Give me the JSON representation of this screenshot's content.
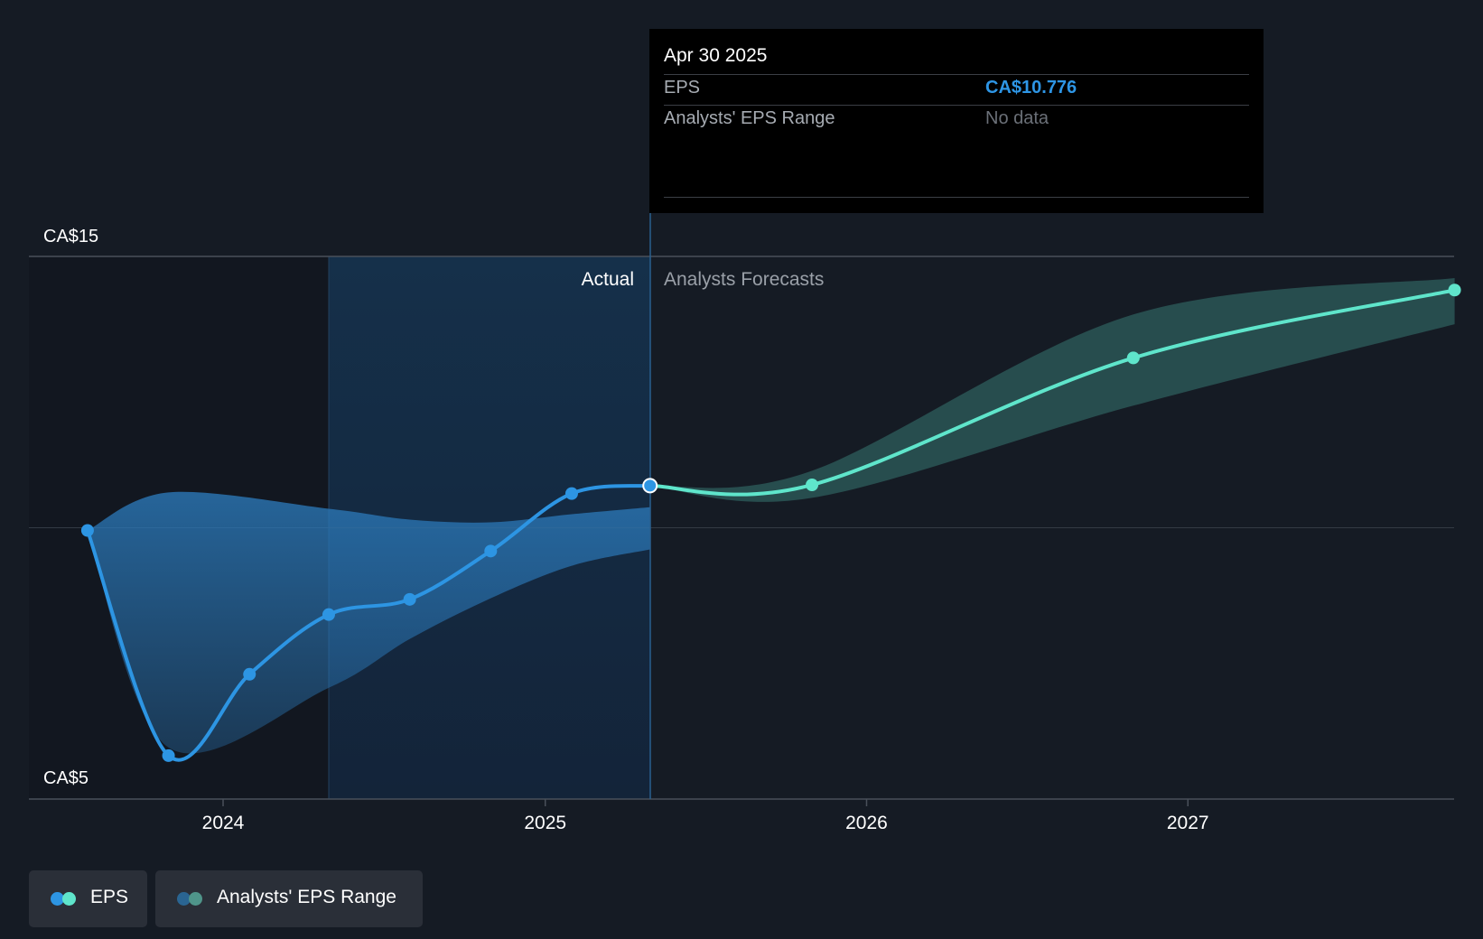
{
  "chart_data": {
    "type": "line",
    "y_axis": {
      "unit": "CA$",
      "ticks": [
        "CA$15",
        "CA$5"
      ],
      "ylim": [
        5,
        15
      ],
      "grid": true
    },
    "x_axis": {
      "ticks": [
        "2024",
        "2025",
        "2026",
        "2027"
      ]
    },
    "regions": {
      "actual_label": "Actual",
      "forecast_label": "Analysts Forecasts"
    },
    "series": [
      {
        "name": "EPS",
        "kind": "actual",
        "color": "#2d95e3",
        "points": [
          {
            "x": "2023-07-31",
            "y": 9.95
          },
          {
            "x": "2023-10-31",
            "y": 5.8
          },
          {
            "x": "2024-01-31",
            "y": 7.3
          },
          {
            "x": "2024-04-30",
            "y": 8.4
          },
          {
            "x": "2024-07-31",
            "y": 8.68
          },
          {
            "x": "2024-10-31",
            "y": 9.57
          },
          {
            "x": "2025-01-31",
            "y": 10.63
          },
          {
            "x": "2025-04-30",
            "y": 10.776
          }
        ]
      },
      {
        "name": "EPS",
        "kind": "forecast",
        "color": "#5fe5cb",
        "points": [
          {
            "x": "2025-04-30",
            "y": 10.776
          },
          {
            "x": "2025-10-31",
            "y": 10.79
          },
          {
            "x": "2026-10-31",
            "y": 13.13
          },
          {
            "x": "2027-10-31",
            "y": 14.38
          }
        ]
      },
      {
        "name": "Analysts' EPS Range",
        "kind": "band",
        "color": "#2d95e3",
        "points": [
          {
            "x": "2023-07-31",
            "low": 9.95,
            "high": 9.95
          },
          {
            "x": "2023-10-31",
            "low": 5.95,
            "high": 10.65
          },
          {
            "x": "2024-04-30",
            "low": 7.05,
            "high": 10.35
          },
          {
            "x": "2024-07-31",
            "low": 7.95,
            "high": 10.15
          },
          {
            "x": "2024-10-31",
            "low": 8.7,
            "high": 10.1
          },
          {
            "x": "2025-01-31",
            "low": 9.3,
            "high": 10.25
          },
          {
            "x": "2025-04-30",
            "low": 9.6,
            "high": 10.38
          }
        ]
      },
      {
        "name": "Analysts' EPS Range",
        "kind": "band",
        "color": "#5fe5cb",
        "points": [
          {
            "x": "2025-04-30",
            "low": 10.776,
            "high": 10.776
          },
          {
            "x": "2025-10-31",
            "low": 10.55,
            "high": 11.05
          },
          {
            "x": "2026-10-31",
            "low": 12.25,
            "high": 13.93
          },
          {
            "x": "2027-10-31",
            "low": 13.75,
            "high": 14.6
          }
        ]
      }
    ],
    "tooltip": {
      "date": "Apr 30 2025",
      "rows": [
        {
          "label": "EPS",
          "value": "CA$10.776"
        },
        {
          "label": "Analysts' EPS Range",
          "value": "No data"
        }
      ]
    },
    "legend": [
      {
        "label": "EPS",
        "colors": [
          "#2d95e3",
          "#5fe5cb"
        ]
      },
      {
        "label": "Analysts' EPS Range",
        "colors": [
          "#2a6592",
          "#4f958a"
        ]
      }
    ]
  }
}
